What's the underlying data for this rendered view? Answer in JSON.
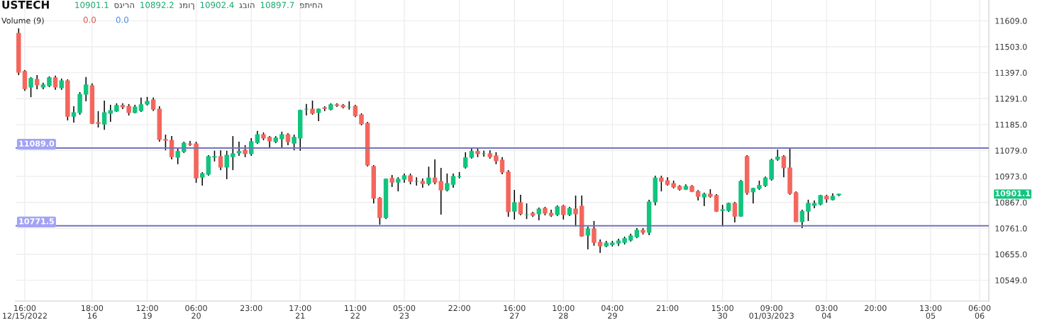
{
  "chart_data": {
    "type": "candlestick",
    "title": "USTECH",
    "subtitle": "Volume (9)",
    "categories": [
      null,
      "16:00\n12/15/2022",
      null,
      null,
      null,
      null,
      null,
      null,
      null,
      null,
      null,
      null,
      "18:00\n16",
      null,
      null,
      null,
      null,
      null,
      null,
      null,
      null,
      "12:00\n19",
      null,
      null,
      null,
      null,
      null,
      null,
      null,
      "06:00\n20",
      null,
      null,
      null,
      null,
      null,
      null,
      null,
      null,
      "23:00",
      null,
      null,
      null,
      null,
      null,
      null,
      null,
      "17:00\n21",
      null,
      null,
      null,
      null,
      null,
      null,
      null,
      null,
      "11:00\n22",
      null,
      null,
      null,
      null,
      null,
      null,
      null,
      "05:00\n23",
      null,
      null,
      null,
      null,
      null,
      null,
      null,
      null,
      "22:00",
      null,
      null,
      null,
      null,
      null,
      null,
      null,
      null,
      "16:00\n27",
      null,
      null,
      null,
      null,
      null,
      null,
      null,
      "10:00\n28",
      null,
      null,
      null,
      null,
      null,
      null,
      null,
      "04:00\n29",
      null,
      null,
      null,
      null,
      null,
      null,
      null,
      null,
      "21:00",
      null,
      null,
      null,
      null,
      null,
      null,
      null,
      null,
      "15:00\n30",
      null,
      null,
      null,
      null,
      null,
      null,
      null,
      "09:00\n01/03/2023",
      null,
      null,
      null,
      null,
      null,
      null,
      null,
      null,
      "03:00\n04",
      null,
      null,
      null,
      null,
      null,
      null,
      null,
      "20:00",
      null,
      null,
      null,
      null,
      null,
      null,
      null,
      null,
      "13:00\n05",
      null,
      null,
      null,
      null,
      null,
      null,
      null,
      "06:00\n06"
    ],
    "ohlc": [
      [
        11558,
        11578,
        11387,
        11399
      ],
      [
        11402,
        11408,
        11323,
        11332
      ],
      [
        11338,
        11379,
        11297,
        11373
      ],
      [
        11370,
        11387,
        11329,
        11347
      ],
      [
        11338,
        11356,
        11329,
        11347
      ],
      [
        11344,
        11382,
        11338,
        11376
      ],
      [
        11376,
        11385,
        11327,
        11338
      ],
      [
        11335,
        11373,
        11327,
        11364
      ],
      [
        11364,
        11370,
        11202,
        11219
      ],
      [
        11219,
        11260,
        11193,
        11234
      ],
      [
        11234,
        11318,
        11225,
        11309
      ],
      [
        11309,
        11379,
        11280,
        11347
      ],
      [
        11344,
        11353,
        11187,
        11190
      ],
      [
        11193,
        11240,
        11173,
        11190
      ],
      [
        11187,
        11283,
        11164,
        11234
      ],
      [
        11231,
        11266,
        11196,
        11242
      ],
      [
        11240,
        11272,
        11237,
        11263
      ],
      [
        11263,
        11272,
        11248,
        11257
      ],
      [
        11260,
        11269,
        11222,
        11234
      ],
      [
        11234,
        11266,
        11231,
        11257
      ],
      [
        11242,
        11295,
        11237,
        11266
      ],
      [
        11269,
        11298,
        11263,
        11280
      ],
      [
        11286,
        11295,
        11240,
        11248
      ],
      [
        11248,
        11260,
        11115,
        11124
      ],
      [
        11124,
        11144,
        11080,
        11121
      ],
      [
        11121,
        11138,
        11043,
        11054
      ],
      [
        11052,
        11092,
        11023,
        11075
      ],
      [
        11075,
        11115,
        11069,
        11109
      ],
      [
        11106,
        11118,
        11098,
        11104
      ],
      [
        11106,
        11115,
        10947,
        10967
      ],
      [
        10970,
        10991,
        10936,
        10985
      ],
      [
        10982,
        11060,
        10976,
        11054
      ],
      [
        11052,
        11078,
        11034,
        11054
      ],
      [
        11054,
        11080,
        10999,
        11011
      ],
      [
        11011,
        11078,
        10962,
        11060
      ],
      [
        11054,
        11138,
        10999,
        11066
      ],
      [
        11069,
        11115,
        11057,
        11075
      ],
      [
        11080,
        11101,
        11052,
        11066
      ],
      [
        11066,
        11130,
        11057,
        11115
      ],
      [
        11112,
        11159,
        11106,
        11144
      ],
      [
        11144,
        11153,
        11121,
        11130
      ],
      [
        11133,
        11138,
        11092,
        11118
      ],
      [
        11115,
        11138,
        11109,
        11130
      ],
      [
        11127,
        11156,
        11092,
        11144
      ],
      [
        11144,
        11150,
        11101,
        11115
      ],
      [
        11109,
        11144,
        11080,
        11133
      ],
      [
        11130,
        11246,
        11078,
        11243
      ],
      [
        11248,
        11269,
        11222,
        11248
      ],
      [
        11248,
        11283,
        11225,
        11231
      ],
      [
        11234,
        11251,
        11199,
        11248
      ],
      [
        11254,
        11260,
        11240,
        11251
      ],
      [
        11248,
        11272,
        11243,
        11266
      ],
      [
        11266,
        11272,
        11257,
        11263
      ],
      [
        11263,
        11269,
        11251,
        11257
      ],
      [
        11257,
        11280,
        11246,
        11257
      ],
      [
        11260,
        11266,
        11216,
        11222
      ],
      [
        11225,
        11231,
        11182,
        11188
      ],
      [
        11190,
        11196,
        11014,
        11020
      ],
      [
        11014,
        11020,
        10863,
        10884
      ],
      [
        10884,
        10889,
        10776,
        10805
      ],
      [
        10805,
        10965,
        10799,
        10962
      ],
      [
        10965,
        10979,
        10930,
        10950
      ],
      [
        10950,
        10970,
        10912,
        10962
      ],
      [
        10962,
        10985,
        10947,
        10976
      ],
      [
        10976,
        10985,
        10941,
        10953
      ],
      [
        10953,
        10970,
        10936,
        10953
      ],
      [
        10953,
        10965,
        10927,
        10944
      ],
      [
        10944,
        11013,
        10936,
        10967
      ],
      [
        10967,
        11043,
        10941,
        10950
      ],
      [
        10953,
        11008,
        10817,
        10918
      ],
      [
        10918,
        10985,
        10912,
        10944
      ],
      [
        10941,
        10985,
        10927,
        10973
      ],
      [
        10973,
        10991,
        10965,
        10973
      ],
      [
        11011,
        11072,
        11005,
        11049
      ],
      [
        11052,
        11092,
        11046,
        11075
      ],
      [
        11075,
        11086,
        11052,
        11066
      ],
      [
        11066,
        11078,
        11054,
        11066
      ],
      [
        11066,
        11080,
        11046,
        11054
      ],
      [
        11057,
        11072,
        11023,
        11037
      ],
      [
        11040,
        11052,
        10982,
        10991
      ],
      [
        10991,
        10999,
        10808,
        10829
      ],
      [
        10831,
        10918,
        10797,
        10866
      ],
      [
        10866,
        10898,
        10814,
        10820
      ],
      [
        10817,
        10863,
        10799,
        10817
      ],
      [
        10823,
        10829,
        10808,
        10814
      ],
      [
        10820,
        10846,
        10794,
        10840
      ],
      [
        10843,
        10849,
        10814,
        10823
      ],
      [
        10823,
        10837,
        10808,
        10814
      ],
      [
        10817,
        10855,
        10811,
        10849
      ],
      [
        10852,
        10857,
        10797,
        10817
      ],
      [
        10817,
        10849,
        10811,
        10843
      ],
      [
        10840,
        10895,
        10768,
        10820
      ],
      [
        10852,
        10895,
        10727,
        10730
      ],
      [
        10733,
        10768,
        10675,
        10759
      ],
      [
        10759,
        10791,
        10690,
        10704
      ],
      [
        10704,
        10716,
        10661,
        10689
      ],
      [
        10689,
        10710,
        10684,
        10701
      ],
      [
        10695,
        10710,
        10687,
        10701
      ],
      [
        10701,
        10719,
        10689,
        10710
      ],
      [
        10704,
        10727,
        10695,
        10719
      ],
      [
        10713,
        10739,
        10707,
        10730
      ],
      [
        10727,
        10762,
        10721,
        10753
      ],
      [
        10753,
        10762,
        10736,
        10745
      ],
      [
        10745,
        10878,
        10733,
        10869
      ],
      [
        10869,
        10976,
        10855,
        10967
      ],
      [
        10967,
        10976,
        10912,
        10953
      ],
      [
        10956,
        10970,
        10936,
        10941
      ],
      [
        10944,
        10956,
        10924,
        10930
      ],
      [
        10933,
        10938,
        10915,
        10921
      ],
      [
        10921,
        10941,
        10918,
        10933
      ],
      [
        10933,
        10938,
        10909,
        10912
      ],
      [
        10912,
        10918,
        10875,
        10892
      ],
      [
        10889,
        10907,
        10852,
        10901
      ],
      [
        10901,
        10921,
        10886,
        10892
      ],
      [
        10895,
        10901,
        10828,
        10831
      ],
      [
        10834,
        10857,
        10768,
        10837
      ],
      [
        10834,
        10866,
        10828,
        10863
      ],
      [
        10863,
        10869,
        10785,
        10811
      ],
      [
        10811,
        10959,
        10808,
        10953
      ],
      [
        11054,
        11060,
        10898,
        10907
      ],
      [
        10910,
        10927,
        10863,
        10924
      ],
      [
        10924,
        10956,
        10918,
        10936
      ],
      [
        10936,
        10973,
        10930,
        10967
      ],
      [
        10962,
        11046,
        10956,
        11040
      ],
      [
        11043,
        11083,
        11037,
        11052
      ],
      [
        11054,
        11060,
        10970,
        11008
      ],
      [
        11008,
        11092,
        10898,
        10904
      ],
      [
        10907,
        10912,
        10788,
        10788
      ],
      [
        10788,
        10837,
        10762,
        10831
      ],
      [
        10831,
        10878,
        10791,
        10863
      ],
      [
        10855,
        10875,
        10843,
        10863
      ],
      [
        10860,
        10898,
        10855,
        10895
      ],
      [
        10892,
        10898,
        10866,
        10881
      ],
      [
        10878,
        10904,
        10875,
        10892
      ],
      [
        10897.7,
        10902.4,
        10892.2,
        10901.1
      ],
      null,
      null,
      null,
      null,
      null,
      null,
      null,
      null,
      null,
      null,
      null,
      null,
      null,
      null,
      null,
      null,
      null,
      null,
      null,
      null,
      null,
      null,
      null
    ],
    "colors": [
      "#f4665c",
      "#f4665c",
      "#12c47e",
      "#f4665c",
      "#12c47e",
      "#12c47e",
      "#f4665c",
      "#12c47e",
      "#f4665c",
      "#12c47e",
      "#12c47e",
      "#12c47e",
      "#f4665c",
      "#f4665c",
      "#12c47e",
      "#12c47e",
      "#12c47e",
      "#f4665c",
      "#f4665c",
      "#12c47e",
      "#12c47e",
      "#12c47e",
      "#f4665c",
      "#f4665c",
      "#f4665c",
      "#f4665c",
      "#12c47e",
      "#12c47e",
      "#f4665c",
      "#f4665c",
      "#12c47e",
      "#12c47e",
      "#12c47e",
      "#f4665c",
      "#12c47e",
      "#12c47e",
      "#12c47e",
      "#f4665c",
      "#12c47e",
      "#12c47e",
      "#f4665c",
      "#f4665c",
      "#12c47e",
      "#12c47e",
      "#f4665c",
      "#12c47e",
      "#12c47e",
      "#12c47e",
      "#f4665c",
      "#12c47e",
      "#f4665c",
      "#12c47e",
      "#f4665c",
      "#f4665c",
      "#12c47e",
      "#f4665c",
      "#f4665c",
      "#f4665c",
      "#f4665c",
      "#f4665c",
      "#12c47e",
      "#f4665c",
      "#12c47e",
      "#12c47e",
      "#f4665c",
      "#12c47e",
      "#f4665c",
      "#12c47e",
      "#f4665c",
      "#f4665c",
      "#12c47e",
      "#12c47e",
      "#12c47e",
      "#12c47e",
      "#12c47e",
      "#f4665c",
      "#12c47e",
      "#f4665c",
      "#f4665c",
      "#f4665c",
      "#f4665c",
      "#12c47e",
      "#f4665c",
      "#12c47e",
      "#f4665c",
      "#12c47e",
      "#f4665c",
      "#f4665c",
      "#12c47e",
      "#f4665c",
      "#12c47e",
      "#f4665c",
      "#f4665c",
      "#12c47e",
      "#f4665c",
      "#f4665c",
      "#12c47e",
      "#12c47e",
      "#12c47e",
      "#12c47e",
      "#12c47e",
      "#12c47e",
      "#f4665c",
      "#12c47e",
      "#12c47e",
      "#f4665c",
      "#f4665c",
      "#f4665c",
      "#f4665c",
      "#12c47e",
      "#f4665c",
      "#f4665c",
      "#12c47e",
      "#f4665c",
      "#f4665c",
      "#12c47e",
      "#12c47e",
      "#f4665c",
      "#12c47e",
      "#f4665c",
      "#12c47e",
      "#12c47e",
      "#12c47e",
      "#12c47e",
      "#12c47e",
      "#f4665c",
      "#f4665c",
      "#f4665c",
      "#12c47e",
      "#12c47e",
      "#12c47e",
      "#12c47e",
      "#f4665c",
      "#12c47e",
      "#12c47e",
      null,
      null,
      null,
      null,
      null,
      null,
      null,
      null,
      null,
      null,
      null,
      null,
      null,
      null,
      null,
      null,
      null,
      null,
      null,
      null,
      null,
      null,
      null
    ],
    "ylim": [
      10464,
      11694
    ],
    "yticks": [
      {
        "value": 10549,
        "label": "10549.0"
      },
      {
        "value": 10655,
        "label": "10655.0"
      },
      {
        "value": 10761,
        "label": "10761.0"
      },
      {
        "value": 10867,
        "label": "10867.0"
      },
      {
        "value": 10973,
        "label": "10973.0"
      },
      {
        "value": 11079,
        "label": "11079.0"
      },
      {
        "value": 11185,
        "label": "11185.0"
      },
      {
        "value": 11291,
        "label": "11291.0"
      },
      {
        "value": 11397,
        "label": "11397.0"
      },
      {
        "value": 11503,
        "label": "11503.0"
      },
      {
        "value": 11609,
        "label": "11609.0"
      }
    ],
    "grid": true,
    "ref_lines": [
      {
        "axis": "y",
        "value": 11089.0,
        "label": "11089.0",
        "color": "#7474b8"
      },
      {
        "axis": "y",
        "value": 10771.5,
        "label": "10771.5",
        "color": "#7474b8"
      }
    ],
    "annotations": [
      "10901.1",
      "סגירה",
      "10892.2",
      "נמוך",
      "10902.4",
      "גבוה",
      "10897.7",
      "פתיחה",
      "0.0",
      "0.0",
      "10901.1"
    ]
  }
}
